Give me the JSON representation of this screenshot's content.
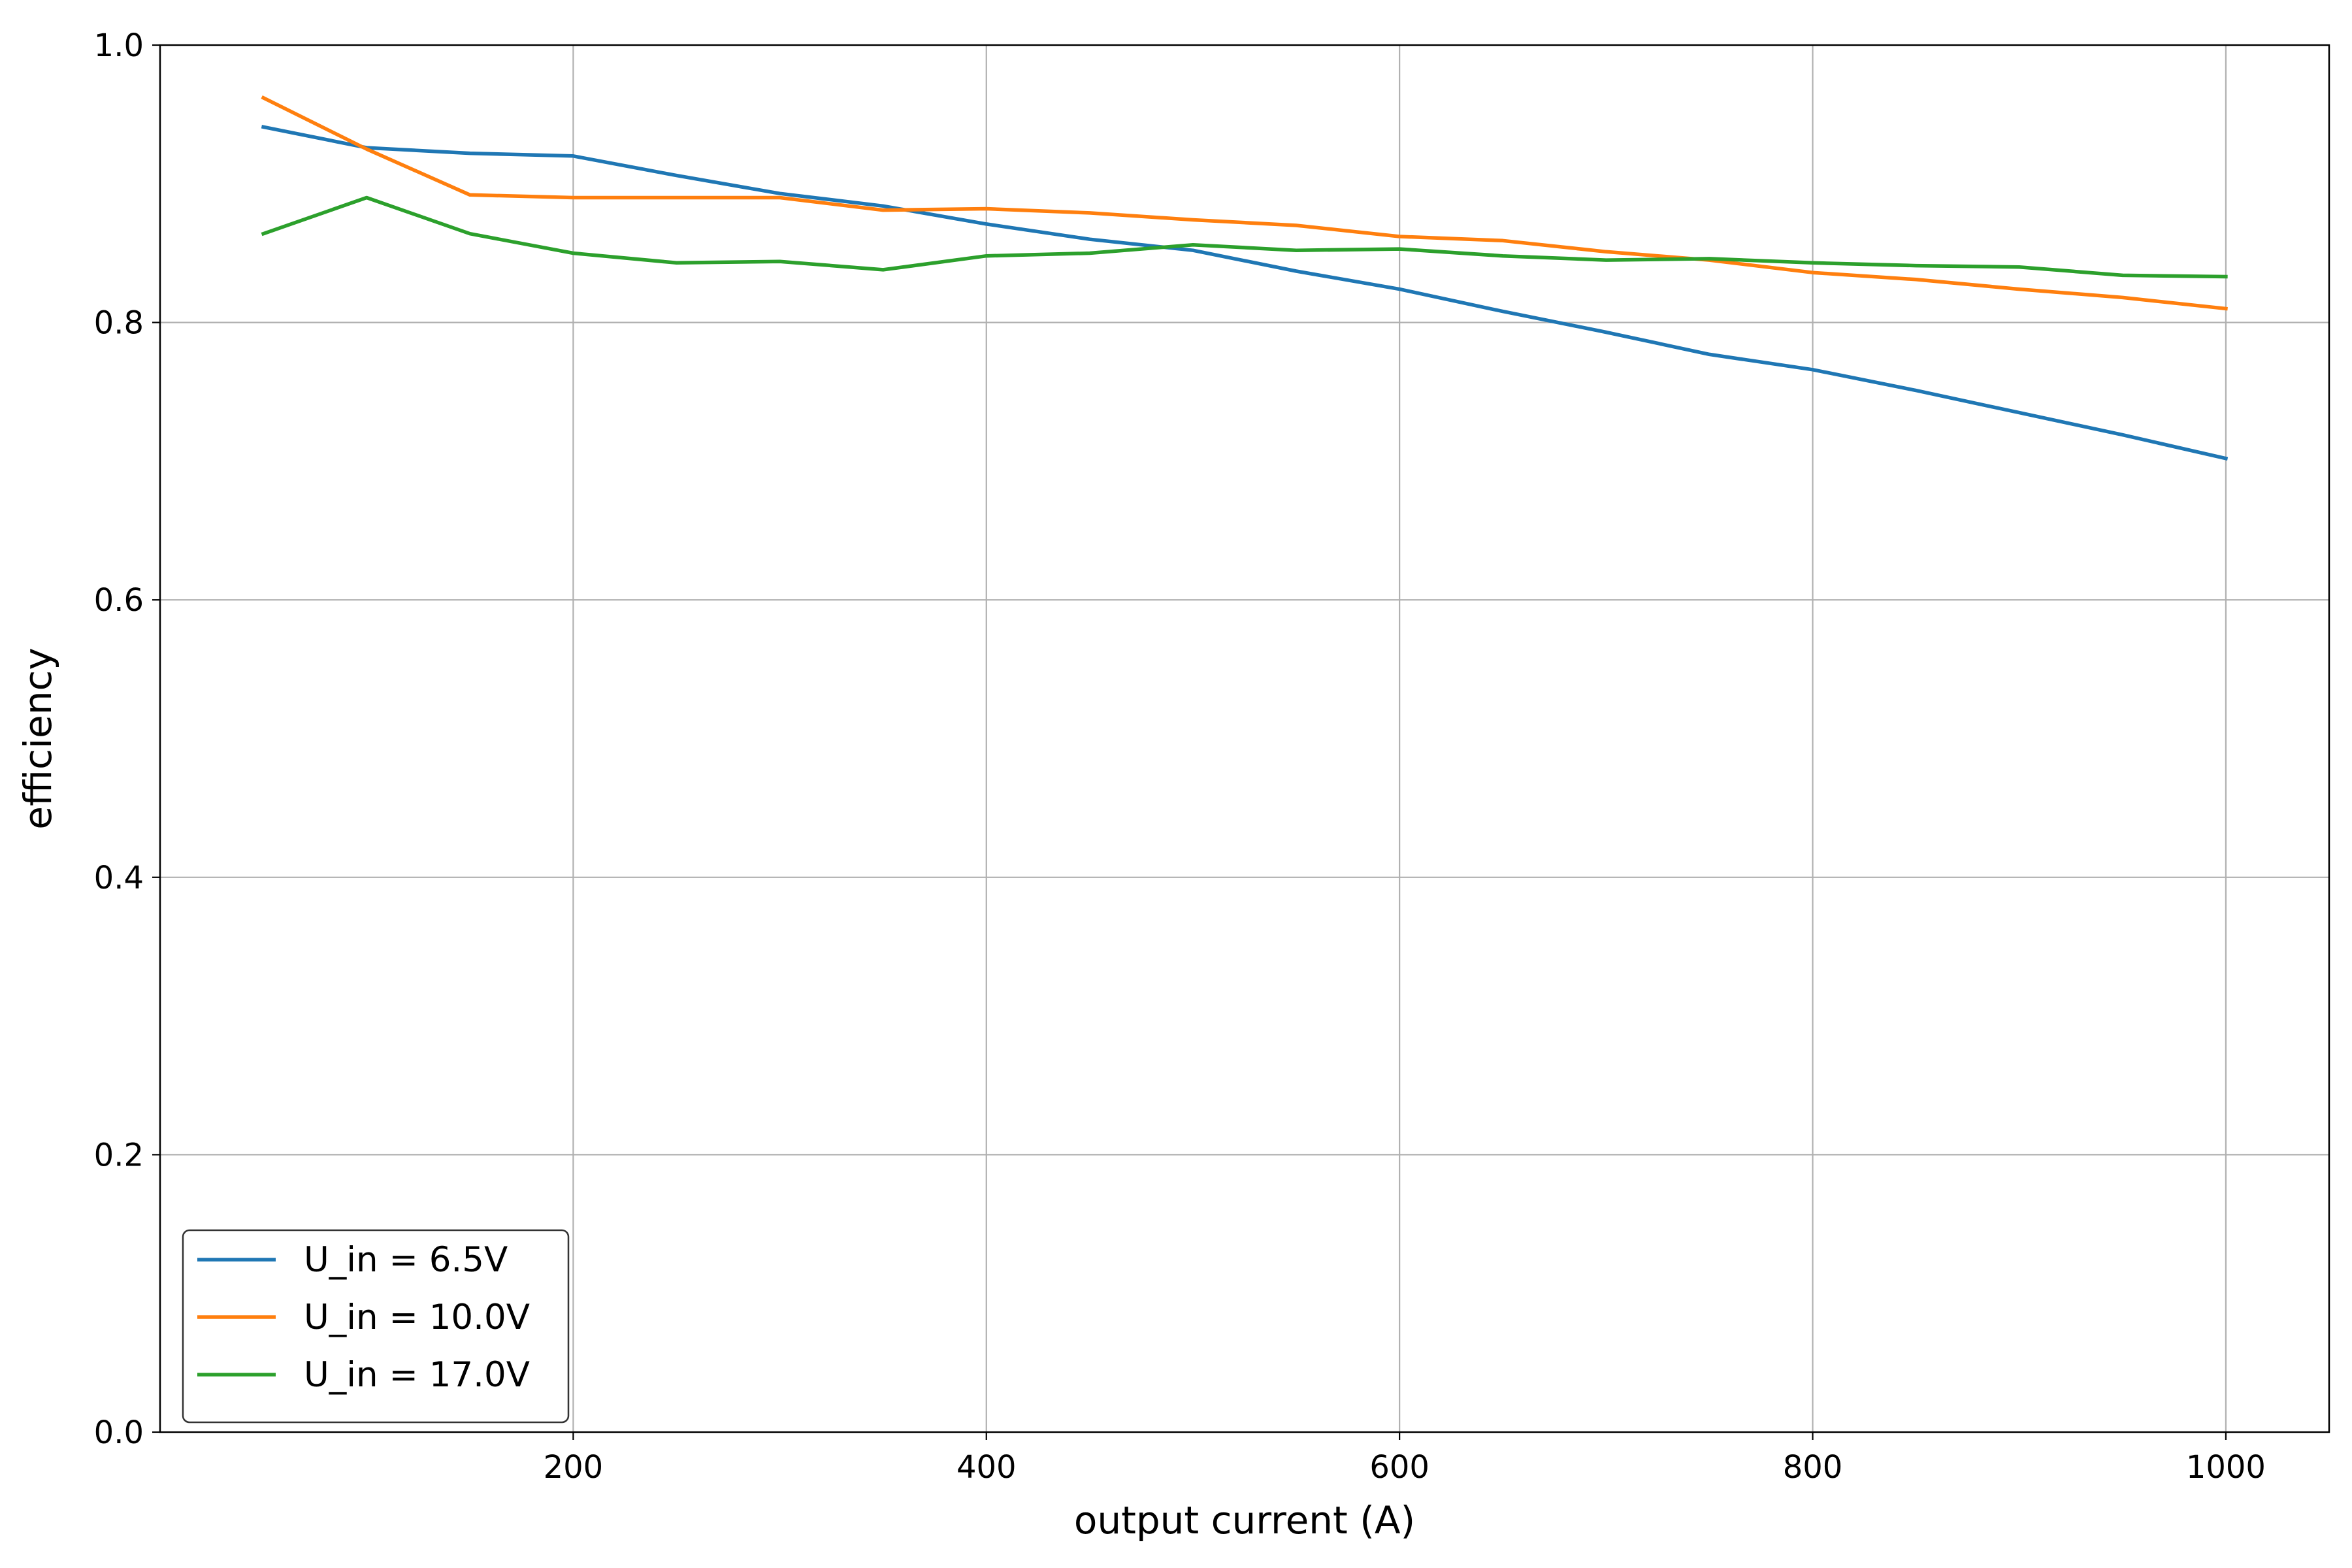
{
  "chart_data": {
    "type": "line",
    "title": "",
    "xlabel": "output current (A)",
    "ylabel": "efficiency",
    "xlim": [
      0,
      1050
    ],
    "ylim": [
      0.0,
      1.0
    ],
    "xticks": [
      200,
      400,
      600,
      800,
      1000
    ],
    "yticks": [
      0.0,
      0.2,
      0.4,
      0.6,
      0.8,
      1.0
    ],
    "xtick_labels": [
      "200",
      "400",
      "600",
      "800",
      "1000"
    ],
    "ytick_labels": [
      "0.0",
      "0.2",
      "0.4",
      "0.6",
      "0.8",
      "1.0"
    ],
    "grid": true,
    "legend_position": "lower-left",
    "x": [
      50,
      100,
      150,
      200,
      250,
      300,
      350,
      400,
      450,
      500,
      550,
      600,
      650,
      700,
      750,
      800,
      850,
      900,
      950,
      1000
    ],
    "series": [
      {
        "name": "U_in = 6.5V",
        "color": "#1f77b4",
        "values": [
          0.941,
          0.926,
          0.922,
          0.92,
          0.906,
          0.893,
          0.884,
          0.871,
          0.86,
          0.852,
          0.837,
          0.824,
          0.808,
          0.793,
          0.777,
          0.766,
          0.751,
          0.735,
          0.719,
          0.702
        ]
      },
      {
        "name": "U_in = 10.0V",
        "color": "#ff7f0e",
        "values": [
          0.962,
          0.925,
          0.892,
          0.89,
          0.89,
          0.89,
          0.881,
          0.882,
          0.879,
          0.874,
          0.87,
          0.862,
          0.859,
          0.851,
          0.845,
          0.836,
          0.831,
          0.824,
          0.818,
          0.81
        ]
      },
      {
        "name": "U_in = 17.0V",
        "color": "#2ca02c",
        "values": [
          0.864,
          0.89,
          0.864,
          0.85,
          0.843,
          0.844,
          0.838,
          0.848,
          0.85,
          0.856,
          0.852,
          0.853,
          0.848,
          0.845,
          0.846,
          0.843,
          0.841,
          0.84,
          0.834,
          0.833
        ]
      }
    ]
  }
}
